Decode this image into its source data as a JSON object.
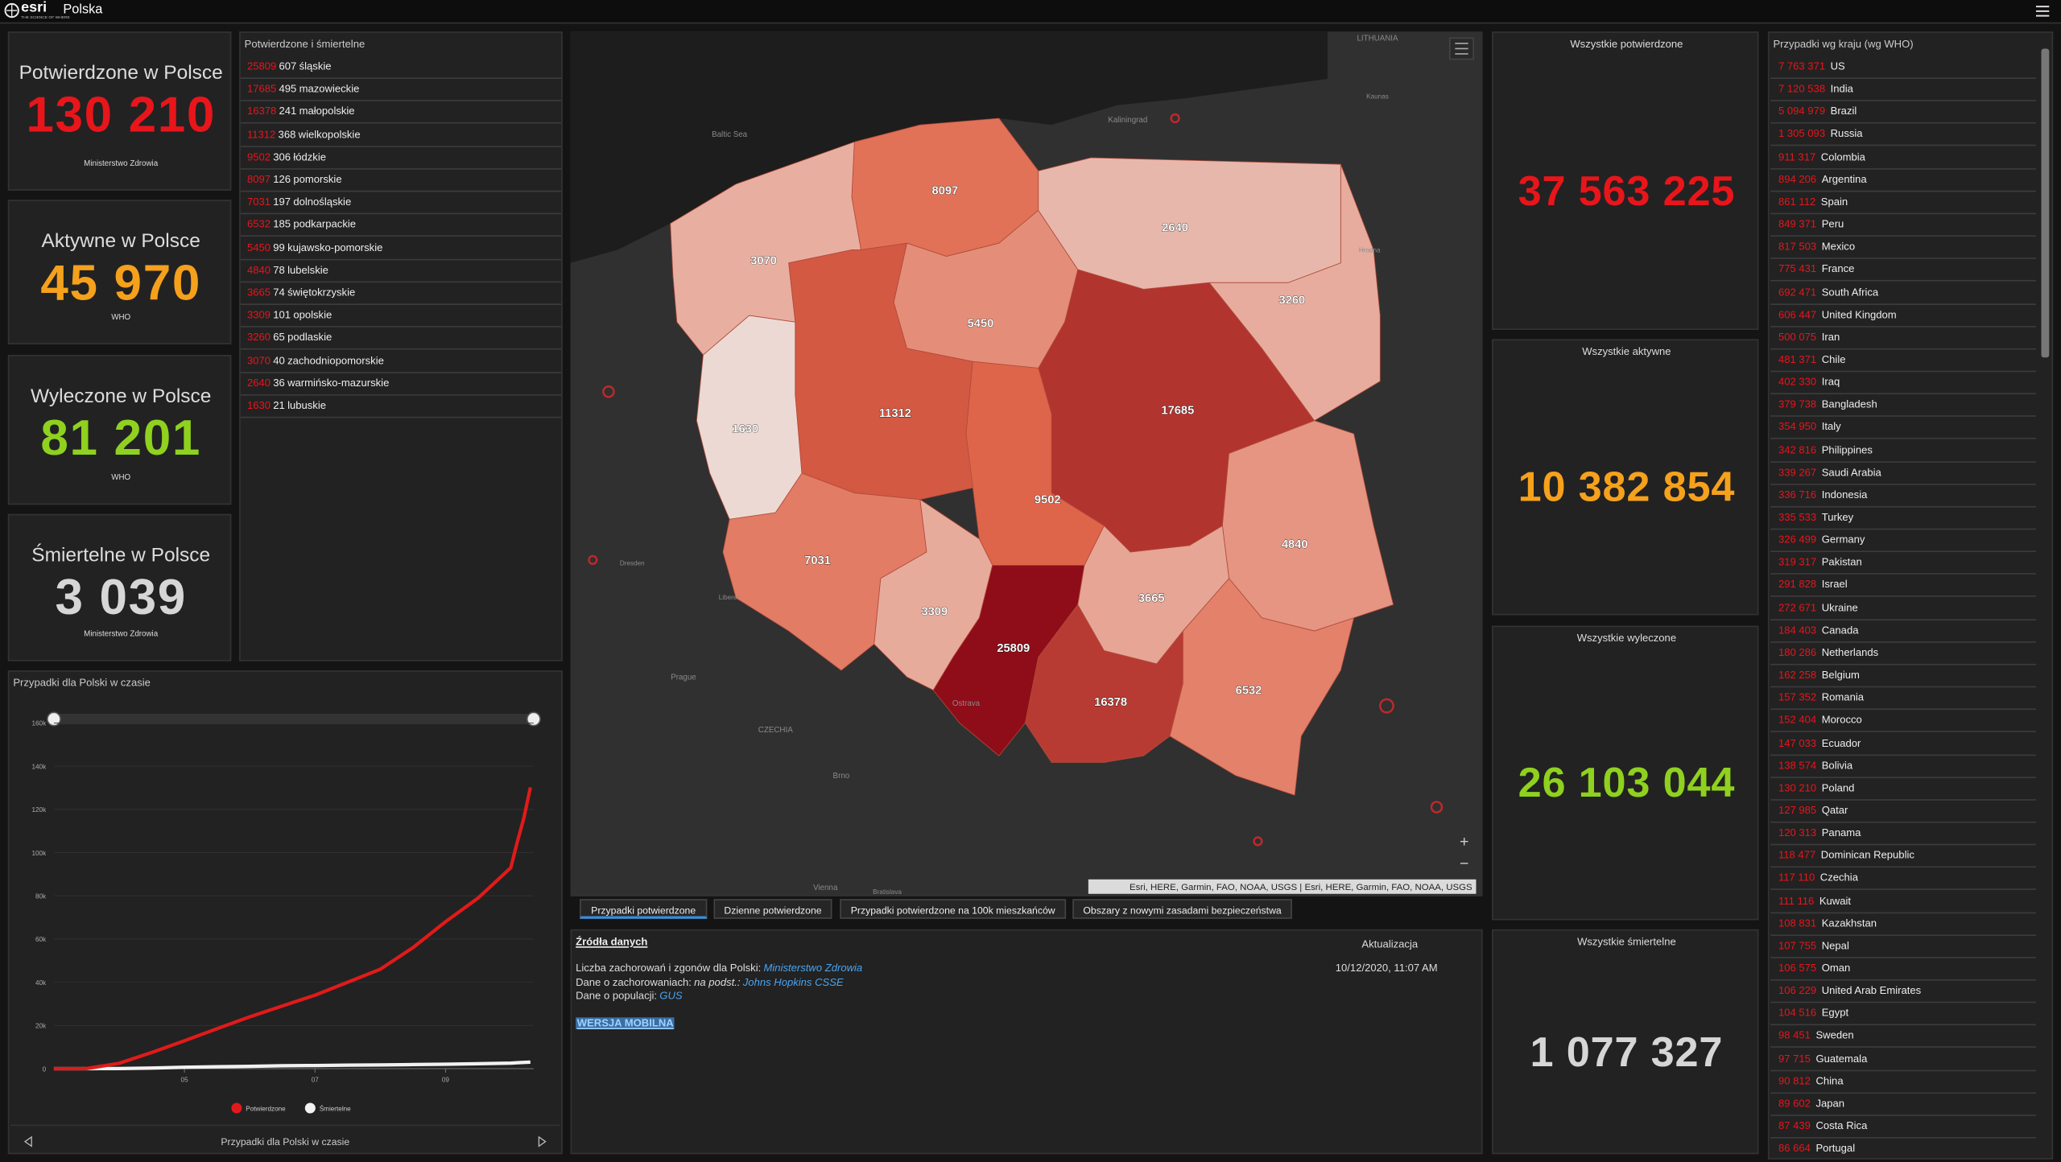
{
  "header": {
    "logo": "esri",
    "tagline": "THE SCIENCE OF WHERE",
    "title": "Polska"
  },
  "poland_cards": [
    {
      "title": "Potwierdzone w Polsce",
      "value": 130210,
      "value_label": "130 210",
      "source": "Ministerstwo Zdrowia",
      "color": "#e8151b"
    },
    {
      "title": "Aktywne w Polsce",
      "value": 45970,
      "value_label": "45 970",
      "source": "WHO",
      "color": "#f5a11c"
    },
    {
      "title": "Wyleczone w Polsce",
      "value": 81201,
      "value_label": "81 201",
      "source": "WHO",
      "color": "#8fd11e"
    },
    {
      "title": "Śmiertelne w Polsce",
      "value": 3039,
      "value_label": "3 039",
      "source": "Ministerstwo Zdrowia",
      "color": "#d6d6d6"
    }
  ],
  "regions": {
    "title": "Potwierdzone i śmiertelne",
    "rows": [
      {
        "confirmed": 25809,
        "deaths": 607,
        "name": "śląskie"
      },
      {
        "confirmed": 17685,
        "deaths": 495,
        "name": "mazowieckie"
      },
      {
        "confirmed": 16378,
        "deaths": 241,
        "name": "małopolskie"
      },
      {
        "confirmed": 11312,
        "deaths": 368,
        "name": "wielkopolskie"
      },
      {
        "confirmed": 9502,
        "deaths": 306,
        "name": "łódzkie"
      },
      {
        "confirmed": 8097,
        "deaths": 126,
        "name": "pomorskie"
      },
      {
        "confirmed": 7031,
        "deaths": 197,
        "name": "dolnośląskie"
      },
      {
        "confirmed": 6532,
        "deaths": 185,
        "name": "podkarpackie"
      },
      {
        "confirmed": 5450,
        "deaths": 99,
        "name": "kujawsko-pomorskie"
      },
      {
        "confirmed": 4840,
        "deaths": 78,
        "name": "lubelskie"
      },
      {
        "confirmed": 3665,
        "deaths": 74,
        "name": "świętokrzyskie"
      },
      {
        "confirmed": 3309,
        "deaths": 101,
        "name": "opolskie"
      },
      {
        "confirmed": 3260,
        "deaths": 65,
        "name": "podlaskie"
      },
      {
        "confirmed": 3070,
        "deaths": 40,
        "name": "zachodniopomorskie"
      },
      {
        "confirmed": 2640,
        "deaths": 36,
        "name": "warmińsko-mazurskie"
      },
      {
        "confirmed": 1630,
        "deaths": 21,
        "name": "lubuskie"
      }
    ]
  },
  "map": {
    "color_scale": [
      "#ecd9d3",
      "#e0674b",
      "#8e0d19"
    ],
    "places": [
      "LITHUANIA",
      "Baltic Sea",
      "Kaliningrad",
      "Kaunas",
      "Hrodna",
      "Dresden",
      "Liberec",
      "Prague",
      "CZECHIA",
      "Ostrava",
      "Brno",
      "Vienna",
      "Bratislava"
    ],
    "attribution": "Esri, HERE, Garmin, FAO, NOAA, USGS | Esri, HERE, Garmin, FAO, NOAA, USGS"
  },
  "tabs": [
    "Przypadki potwierdzone",
    "Dzienne potwierdzone",
    "Przypadki potwierdzone na 100k mieszkańców",
    "Obszary z nowymi zasadami bezpieczeństwa"
  ],
  "sources": {
    "title": "Źródła danych",
    "lines": [
      {
        "text": "Liczba zachorowań i zgonów dla Polski:",
        "link": "Ministerstwo Zdrowia"
      },
      {
        "text": "Dane o zachorowaniach:",
        "note": "na podst.:",
        "link": "Johns Hopkins CSSE"
      },
      {
        "text": "Dane o populacji:",
        "link": "GUS"
      }
    ],
    "mobile": "WERSJA MOBILNA",
    "update_title": "Aktualizacja",
    "update_time": "10/12/2020, 11:07 AM"
  },
  "global_cards": [
    {
      "title": "Wszystkie potwierdzone",
      "value": 37563225,
      "value_label": "37 563 225",
      "color": "#e8151b"
    },
    {
      "title": "Wszystkie aktywne",
      "value": 10382854,
      "value_label": "10 382 854",
      "color": "#f5a11c"
    },
    {
      "title": "Wszystkie wyleczone",
      "value": 26103044,
      "value_label": "26 103 044",
      "color": "#8fd11e"
    },
    {
      "title": "Wszystkie śmiertelne",
      "value": 1077327,
      "value_label": "1 077 327",
      "color": "#d6d6d6"
    }
  ],
  "countries": {
    "title": "Przypadki wg kraju (wg WHO)",
    "rows": [
      {
        "value": 7763371,
        "value_label": "7 763 371",
        "name": "US"
      },
      {
        "value": 7120538,
        "value_label": "7 120 538",
        "name": "India"
      },
      {
        "value": 5094979,
        "value_label": "5 094 979",
        "name": "Brazil"
      },
      {
        "value": 1305093,
        "value_label": "1 305 093",
        "name": "Russia"
      },
      {
        "value": 911317,
        "value_label": "911 317",
        "name": "Colombia"
      },
      {
        "value": 894206,
        "value_label": "894 206",
        "name": "Argentina"
      },
      {
        "value": 861112,
        "value_label": "861 112",
        "name": "Spain"
      },
      {
        "value": 849371,
        "value_label": "849 371",
        "name": "Peru"
      },
      {
        "value": 817503,
        "value_label": "817 503",
        "name": "Mexico"
      },
      {
        "value": 775431,
        "value_label": "775 431",
        "name": "France"
      },
      {
        "value": 692471,
        "value_label": "692 471",
        "name": "South Africa"
      },
      {
        "value": 606447,
        "value_label": "606 447",
        "name": "United Kingdom"
      },
      {
        "value": 500075,
        "value_label": "500 075",
        "name": "Iran"
      },
      {
        "value": 481371,
        "value_label": "481 371",
        "name": "Chile"
      },
      {
        "value": 402330,
        "value_label": "402 330",
        "name": "Iraq"
      },
      {
        "value": 379738,
        "value_label": "379 738",
        "name": "Bangladesh"
      },
      {
        "value": 354950,
        "value_label": "354 950",
        "name": "Italy"
      },
      {
        "value": 342816,
        "value_label": "342 816",
        "name": "Philippines"
      },
      {
        "value": 339267,
        "value_label": "339 267",
        "name": "Saudi Arabia"
      },
      {
        "value": 336716,
        "value_label": "336 716",
        "name": "Indonesia"
      },
      {
        "value": 335533,
        "value_label": "335 533",
        "name": "Turkey"
      },
      {
        "value": 326499,
        "value_label": "326 499",
        "name": "Germany"
      },
      {
        "value": 319317,
        "value_label": "319 317",
        "name": "Pakistan"
      },
      {
        "value": 291828,
        "value_label": "291 828",
        "name": "Israel"
      },
      {
        "value": 272671,
        "value_label": "272 671",
        "name": "Ukraine"
      },
      {
        "value": 184403,
        "value_label": "184 403",
        "name": "Canada"
      },
      {
        "value": 180286,
        "value_label": "180 286",
        "name": "Netherlands"
      },
      {
        "value": 162258,
        "value_label": "162 258",
        "name": "Belgium"
      },
      {
        "value": 157352,
        "value_label": "157 352",
        "name": "Romania"
      },
      {
        "value": 152404,
        "value_label": "152 404",
        "name": "Morocco"
      },
      {
        "value": 147033,
        "value_label": "147 033",
        "name": "Ecuador"
      },
      {
        "value": 138574,
        "value_label": "138 574",
        "name": "Bolivia"
      },
      {
        "value": 130210,
        "value_label": "130 210",
        "name": "Poland"
      },
      {
        "value": 127985,
        "value_label": "127 985",
        "name": "Qatar"
      },
      {
        "value": 120313,
        "value_label": "120 313",
        "name": "Panama"
      },
      {
        "value": 118477,
        "value_label": "118 477",
        "name": "Dominican Republic"
      },
      {
        "value": 117110,
        "value_label": "117 110",
        "name": "Czechia"
      },
      {
        "value": 111116,
        "value_label": "111 116",
        "name": "Kuwait"
      },
      {
        "value": 108831,
        "value_label": "108 831",
        "name": "Kazakhstan"
      },
      {
        "value": 107755,
        "value_label": "107 755",
        "name": "Nepal"
      },
      {
        "value": 106575,
        "value_label": "106 575",
        "name": "Oman"
      },
      {
        "value": 106229,
        "value_label": "106 229",
        "name": "United Arab Emirates"
      },
      {
        "value": 104516,
        "value_label": "104 516",
        "name": "Egypt"
      },
      {
        "value": 98451,
        "value_label": "98 451",
        "name": "Sweden"
      },
      {
        "value": 97715,
        "value_label": "97 715",
        "name": "Guatemala"
      },
      {
        "value": 90812,
        "value_label": "90 812",
        "name": "China"
      },
      {
        "value": 89602,
        "value_label": "89 602",
        "name": "Japan"
      },
      {
        "value": 87439,
        "value_label": "87 439",
        "name": "Costa Rica"
      },
      {
        "value": 86664,
        "value_label": "86 664",
        "name": "Portugal"
      }
    ]
  },
  "chart_data": {
    "type": "line",
    "title": "Przypadki dla Polski w czasie",
    "x": [
      3,
      3.5,
      4,
      4.5,
      5,
      5.5,
      6,
      6.5,
      7,
      7.5,
      8,
      8.5,
      9,
      9.5,
      10,
      10.1,
      10.2,
      10.3
    ],
    "series": [
      {
        "name": "Potwierdzone",
        "color": "#e01a1a",
        "values": [
          0,
          50,
          2500,
          7500,
          12900,
          18500,
          24000,
          29000,
          34000,
          40000,
          46000,
          56000,
          68000,
          79000,
          93000,
          105000,
          116000,
          130210
        ]
      },
      {
        "name": "Śmiertelne",
        "color": "#f2f2f2",
        "values": [
          0,
          1,
          70,
          300,
          640,
          900,
          1060,
          1350,
          1460,
          1620,
          1730,
          1900,
          2040,
          2300,
          2570,
          2750,
          2900,
          3039
        ]
      }
    ],
    "xlim": [
      3,
      10.35
    ],
    "xticks": [
      {
        "value": 5,
        "label": "05"
      },
      {
        "value": 7,
        "label": "07"
      },
      {
        "value": 9,
        "label": "09"
      }
    ],
    "ylim": [
      0,
      160000
    ],
    "yticks": [
      0,
      {
        "value": 20000,
        "label": "20k"
      },
      {
        "value": 40000,
        "label": "40k"
      },
      {
        "value": 60000,
        "label": "60k"
      },
      {
        "value": 80000,
        "label": "80k"
      },
      {
        "value": 100000,
        "label": "100k"
      },
      {
        "value": 120000,
        "label": "120k"
      },
      {
        "value": 140000,
        "label": "140k"
      },
      {
        "value": 160000,
        "label": "160k"
      }
    ],
    "grid": true,
    "legend": "bottom"
  }
}
